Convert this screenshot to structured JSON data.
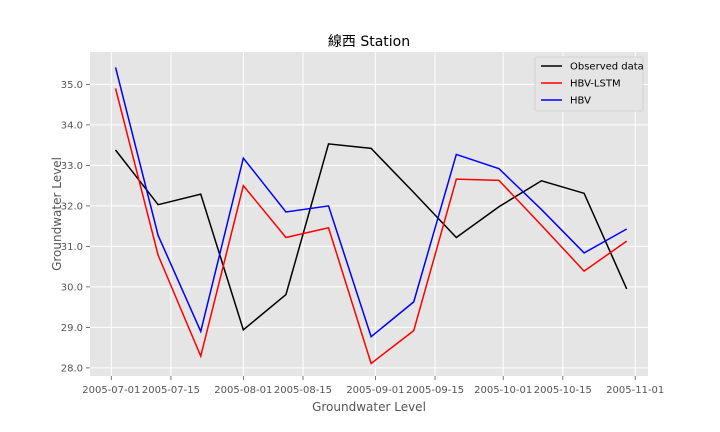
{
  "chart_data": {
    "type": "line",
    "title": "線西 Station",
    "xlabel": "Groundwater Level",
    "ylabel": "Groundwater Level",
    "x_axis_type": "date",
    "xlim": [
      "2005-06-26",
      "2005-11-04"
    ],
    "ylim": [
      27.8,
      35.8
    ],
    "xticks": [
      "2005-07-01",
      "2005-07-15",
      "2005-08-01",
      "2005-08-15",
      "2005-09-01",
      "2005-09-15",
      "2005-10-01",
      "2005-10-15",
      "2005-11-01"
    ],
    "yticks": [
      28,
      29,
      30,
      31,
      32,
      33,
      34,
      35
    ],
    "ytick_labels": [
      "28.0",
      "29.0",
      "30.0",
      "31.0",
      "32.0",
      "33.0",
      "34.0",
      "35.0"
    ],
    "grid": true,
    "legend_position": "top-right",
    "x": [
      "2005-07-02",
      "2005-07-12",
      "2005-07-22",
      "2005-08-01",
      "2005-08-11",
      "2005-08-21",
      "2005-08-31",
      "2005-09-10",
      "2005-09-20",
      "2005-09-30",
      "2005-10-10",
      "2005-10-20",
      "2005-10-30"
    ],
    "series": [
      {
        "name": "Observed data",
        "color": "#000000",
        "values": [
          33.38,
          32.03,
          32.29,
          28.94,
          29.81,
          33.53,
          33.42,
          32.33,
          31.22,
          31.98,
          32.62,
          32.31,
          29.95
        ]
      },
      {
        "name": "HBV-LSTM",
        "color": "#ff0000",
        "values": [
          34.9,
          30.78,
          28.29,
          32.5,
          31.22,
          31.46,
          28.11,
          28.92,
          32.66,
          32.63,
          31.52,
          30.39,
          31.13
        ]
      },
      {
        "name": "HBV",
        "color": "#0000ff",
        "values": [
          35.42,
          31.27,
          28.9,
          33.18,
          31.85,
          32.0,
          28.77,
          29.63,
          33.27,
          32.92,
          31.91,
          30.84,
          31.43
        ]
      }
    ]
  }
}
